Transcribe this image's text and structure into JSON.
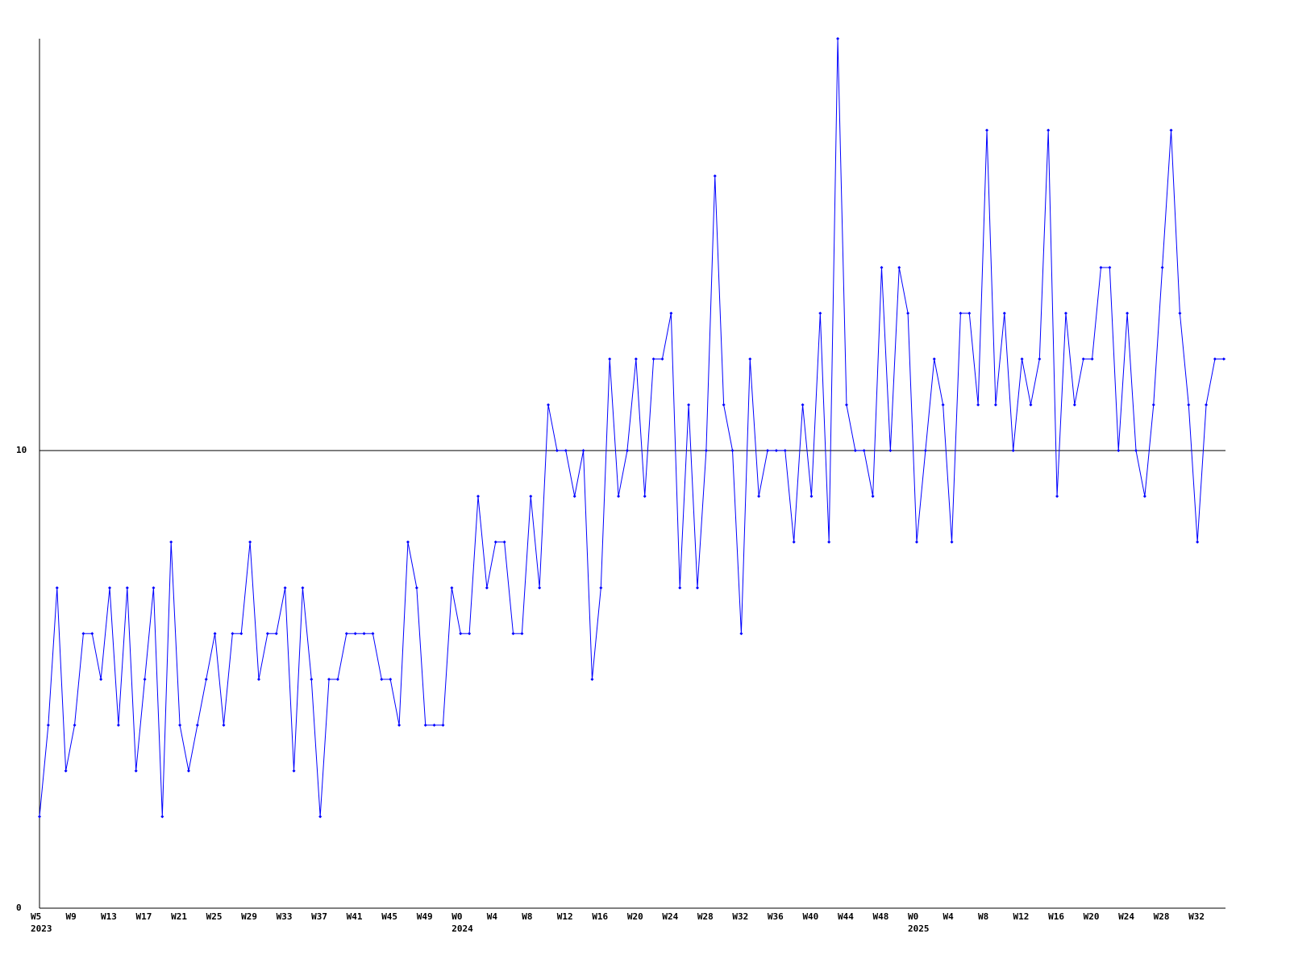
{
  "chart_data": {
    "type": "line",
    "categories": [
      "W5",
      null,
      null,
      null,
      "W9",
      null,
      null,
      null,
      "W13",
      null,
      null,
      null,
      "W17",
      null,
      null,
      null,
      "W21",
      null,
      null,
      null,
      "W25",
      null,
      null,
      null,
      "W29",
      null,
      null,
      null,
      "W33",
      null,
      null,
      null,
      "W37",
      null,
      null,
      null,
      "W41",
      null,
      null,
      null,
      "W45",
      null,
      null,
      null,
      "W49",
      null,
      null,
      null,
      "W0",
      null,
      null,
      null,
      "W4",
      null,
      null,
      null,
      "W8",
      null,
      null,
      null,
      "W12",
      null,
      null,
      null,
      "W16",
      null,
      null,
      null,
      "W20",
      null,
      null,
      null,
      "W24",
      null,
      null,
      null,
      "W28",
      null,
      null,
      null,
      "W32",
      null,
      null,
      null,
      "W36",
      null,
      null,
      null,
      "W40",
      null,
      null,
      null,
      "W44",
      null,
      null,
      null,
      "W48",
      null,
      null,
      null,
      "W0",
      null,
      null,
      null,
      "W4",
      null,
      null,
      null,
      "W8",
      null,
      null,
      null,
      "W12",
      null,
      null,
      null,
      "W16",
      null,
      null,
      null,
      "W20",
      null,
      null,
      null,
      "W24",
      null,
      null,
      null,
      "W28",
      null,
      null,
      null,
      "W32",
      null,
      null,
      null
    ],
    "category_years": [
      "2023",
      null,
      null,
      null,
      null,
      null,
      null,
      null,
      null,
      null,
      null,
      null,
      null,
      null,
      null,
      null,
      null,
      null,
      null,
      null,
      null,
      null,
      null,
      null,
      null,
      null,
      null,
      null,
      null,
      null,
      null,
      null,
      null,
      null,
      null,
      null,
      null,
      null,
      null,
      null,
      null,
      null,
      null,
      null,
      null,
      null,
      null,
      null,
      "2024",
      null,
      null,
      null,
      null,
      null,
      null,
      null,
      null,
      null,
      null,
      null,
      null,
      null,
      null,
      null,
      null,
      null,
      null,
      null,
      null,
      null,
      null,
      null,
      null,
      null,
      null,
      null,
      null,
      null,
      null,
      null,
      null,
      null,
      null,
      null,
      null,
      null,
      null,
      null,
      null,
      null,
      null,
      null,
      null,
      null,
      null,
      null,
      null,
      null,
      null,
      null,
      "2025",
      null,
      null,
      null,
      null,
      null,
      null,
      null,
      null,
      null,
      null,
      null,
      null,
      null,
      null,
      null,
      null,
      null,
      null,
      null,
      null,
      null,
      null,
      null,
      null,
      null,
      null,
      null,
      null,
      null,
      null,
      null,
      null,
      null,
      null,
      null
    ],
    "series": [
      {
        "color": "#0000ff",
        "values": [
          2,
          4,
          7,
          3,
          4,
          6,
          6,
          5,
          7,
          4,
          7,
          3,
          5,
          7,
          2,
          8,
          4,
          3,
          4,
          5,
          6,
          4,
          6,
          6,
          8,
          5,
          6,
          6,
          7,
          3,
          7,
          5,
          2,
          5,
          5,
          6,
          6,
          6,
          6,
          5,
          5,
          4,
          8,
          7,
          4,
          4,
          4,
          7,
          6,
          6,
          9,
          7,
          8,
          8,
          6,
          6,
          9,
          7,
          11,
          10,
          10,
          9,
          10,
          5,
          7,
          12,
          9,
          10,
          12,
          9,
          12,
          12,
          13,
          7,
          11,
          7,
          10,
          16,
          11,
          10,
          6,
          12,
          9,
          10,
          10,
          10,
          8,
          11,
          9,
          13,
          8,
          19,
          11,
          10,
          10,
          9,
          14,
          10,
          14,
          13,
          8,
          10,
          12,
          11,
          8,
          13,
          13,
          11,
          17,
          11,
          13,
          10,
          12,
          11,
          12,
          17,
          9,
          13,
          11,
          12,
          12,
          14,
          14,
          10,
          13,
          10,
          9,
          11,
          14,
          17,
          13,
          11,
          8,
          11,
          12,
          12
        ]
      }
    ],
    "ylim": [
      0,
      19
    ],
    "yticks": [
      0,
      10
    ],
    "grid": true
  }
}
